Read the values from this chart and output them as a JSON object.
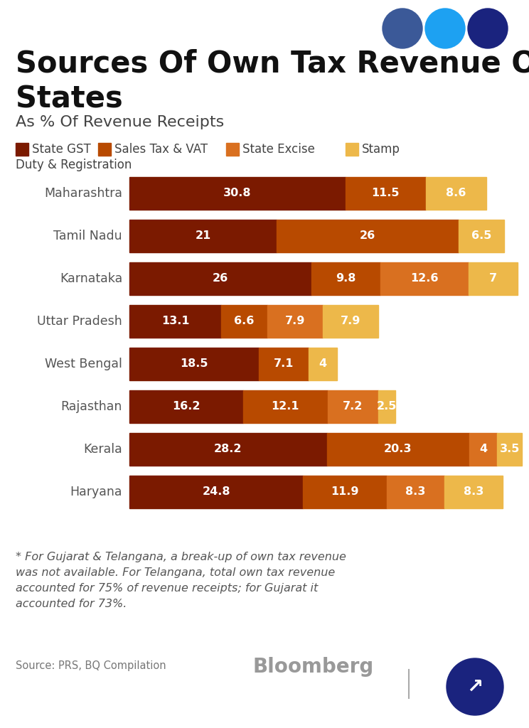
{
  "title_line1": "Sources Of Own Tax Revenue Of",
  "title_line2": "States",
  "subtitle": "As % Of Revenue Receipts",
  "states": [
    "Maharashtra",
    "Tamil Nadu",
    "Karnataka",
    "Uttar Pradesh",
    "West Bengal",
    "Rajasthan",
    "Kerala",
    "Haryana"
  ],
  "colors": {
    "state_gst": "#7B1A00",
    "sales_tax_vat": "#B84A00",
    "state_excise": "#D97020",
    "stamp_duty": "#EDB84A"
  },
  "legend_labels": [
    "State GST",
    "Sales Tax & VAT",
    "State Excise",
    "Stamp\nDuty & Registration"
  ],
  "footnote_line1": "* For Gujarat & Telangana, a break-up of own tax revenue",
  "footnote_line2": "was not available. For Telangana, total own tax revenue",
  "footnote_line3": "accounted for 75% of revenue receipts; for Gujarat it",
  "footnote_line4": "accounted for 73%.",
  "source": "Source: PRS, BQ Compilation",
  "bg_color": "#FFFFFF",
  "bar_values": {
    "Maharashtra": [
      30.8,
      11.5,
      0.0,
      8.6
    ],
    "Tamil Nadu": [
      21.0,
      26.0,
      0.0,
      6.5
    ],
    "Karnataka": [
      26.0,
      9.8,
      12.6,
      7.0
    ],
    "Uttar Pradesh": [
      13.1,
      6.6,
      7.9,
      7.9
    ],
    "West Bengal": [
      18.5,
      7.1,
      0.0,
      4.0
    ],
    "Rajasthan": [
      16.2,
      12.1,
      7.2,
      2.5
    ],
    "Kerala": [
      28.2,
      20.3,
      4.0,
      3.5
    ],
    "Haryana": [
      24.8,
      11.9,
      8.3,
      8.3
    ]
  },
  "icon_colors": [
    "#3b5998",
    "#1da1f2",
    "#1a237e"
  ],
  "max_val": 55.0
}
